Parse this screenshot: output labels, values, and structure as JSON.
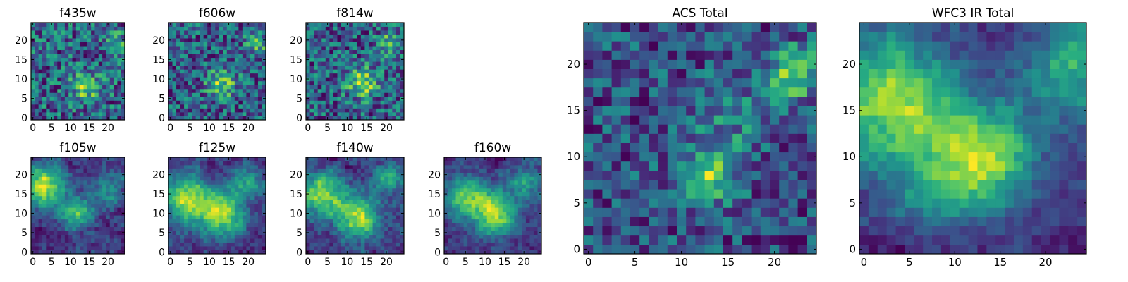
{
  "figure": {
    "background": "#ffffff",
    "colormap": "viridis"
  },
  "chart_data": [
    {
      "type": "heatmap",
      "title": "f435w",
      "grid_size": 25,
      "xlim": [
        -0.5,
        24.5
      ],
      "ylim": [
        -0.5,
        24.5
      ],
      "xticks": [
        "0",
        "5",
        "10",
        "15",
        "20"
      ],
      "yticks": [
        "0",
        "5",
        "10",
        "15",
        "20"
      ],
      "seed": 11,
      "noise": 0.9,
      "smooth": 0,
      "blobs": [
        [
          14,
          8,
          0.6,
          2.5
        ],
        [
          22,
          19,
          0.4,
          2.0
        ]
      ]
    },
    {
      "type": "heatmap",
      "title": "f606w",
      "grid_size": 25,
      "xlim": [
        -0.5,
        24.5
      ],
      "ylim": [
        -0.5,
        24.5
      ],
      "xticks": [
        "0",
        "5",
        "10",
        "15",
        "20"
      ],
      "yticks": [
        "0",
        "5",
        "10",
        "15",
        "20"
      ],
      "seed": 23,
      "noise": 0.9,
      "smooth": 0,
      "blobs": [
        [
          13,
          9,
          0.7,
          2.5
        ],
        [
          22,
          19,
          0.5,
          2.0
        ]
      ]
    },
    {
      "type": "heatmap",
      "title": "f814w",
      "grid_size": 25,
      "xlim": [
        -0.5,
        24.5
      ],
      "ylim": [
        -0.5,
        24.5
      ],
      "xticks": [
        "0",
        "5",
        "10",
        "15",
        "20"
      ],
      "yticks": [
        "0",
        "5",
        "10",
        "15",
        "20"
      ],
      "seed": 37,
      "noise": 0.9,
      "smooth": 0,
      "blobs": [
        [
          14,
          9,
          0.8,
          2.5
        ],
        [
          21,
          19,
          0.6,
          2.0
        ]
      ]
    },
    {
      "type": "heatmap",
      "title": "f105w",
      "grid_size": 25,
      "xlim": [
        -0.5,
        24.5
      ],
      "ylim": [
        -0.5,
        24.5
      ],
      "xticks": [
        "0",
        "5",
        "10",
        "15",
        "20"
      ],
      "yticks": [
        "0",
        "5",
        "10",
        "15",
        "20"
      ],
      "seed": 41,
      "noise": 0.5,
      "smooth": 1,
      "blobs": [
        [
          3,
          17,
          0.9,
          4.0
        ],
        [
          12,
          10,
          0.7,
          3.0
        ],
        [
          20,
          16,
          0.4,
          3.0
        ]
      ]
    },
    {
      "type": "heatmap",
      "title": "f125w",
      "grid_size": 25,
      "xlim": [
        -0.5,
        24.5
      ],
      "ylim": [
        -0.5,
        24.5
      ],
      "xticks": [
        "0",
        "5",
        "10",
        "15",
        "20"
      ],
      "yticks": [
        "0",
        "5",
        "10",
        "15",
        "20"
      ],
      "seed": 53,
      "noise": 0.5,
      "smooth": 1,
      "blobs": [
        [
          4,
          14,
          0.8,
          4.0
        ],
        [
          13,
          10,
          0.9,
          4.0
        ],
        [
          20,
          18,
          0.5,
          3.0
        ]
      ]
    },
    {
      "type": "heatmap",
      "title": "f140w",
      "grid_size": 25,
      "xlim": [
        -0.5,
        24.5
      ],
      "ylim": [
        -0.5,
        24.5
      ],
      "xticks": [
        "0",
        "5",
        "10",
        "15",
        "20"
      ],
      "yticks": [
        "0",
        "5",
        "10",
        "15",
        "20"
      ],
      "seed": 61,
      "noise": 0.5,
      "smooth": 1,
      "blobs": [
        [
          4,
          15,
          0.8,
          4.0
        ],
        [
          13,
          9,
          0.9,
          3.5
        ],
        [
          21,
          19,
          0.5,
          3.0
        ]
      ]
    },
    {
      "type": "heatmap",
      "title": "f160w",
      "grid_size": 25,
      "xlim": [
        -0.5,
        24.5
      ],
      "ylim": [
        -0.5,
        24.5
      ],
      "xticks": [
        "0",
        "5",
        "10",
        "15",
        "20"
      ],
      "yticks": [
        "0",
        "5",
        "10",
        "15",
        "20"
      ],
      "seed": 71,
      "noise": 0.5,
      "smooth": 1,
      "blobs": [
        [
          5,
          14,
          0.7,
          4.0
        ],
        [
          13,
          10,
          0.9,
          4.0
        ],
        [
          21,
          18,
          0.5,
          3.0
        ]
      ]
    },
    {
      "type": "heatmap",
      "title": "ACS Total",
      "grid_size": 25,
      "xlim": [
        -0.5,
        24.5
      ],
      "ylim": [
        -0.5,
        24.5
      ],
      "xticks": [
        "0",
        "5",
        "10",
        "15",
        "20"
      ],
      "yticks": [
        "0",
        "5",
        "10",
        "15",
        "20"
      ],
      "seed": 83,
      "noise": 0.8,
      "smooth": 0,
      "blobs": [
        [
          13,
          8,
          0.9,
          2.0
        ],
        [
          22,
          19,
          0.8,
          2.0
        ],
        [
          15,
          14,
          0.3,
          3.0
        ]
      ]
    },
    {
      "type": "heatmap",
      "title": "WFC3 IR Total",
      "grid_size": 25,
      "xlim": [
        -0.5,
        24.5
      ],
      "ylim": [
        -0.5,
        24.5
      ],
      "xticks": [
        "0",
        "5",
        "10",
        "15",
        "20"
      ],
      "yticks": [
        "0",
        "5",
        "10",
        "15",
        "20"
      ],
      "seed": 97,
      "noise": 0.35,
      "smooth": 1,
      "blobs": [
        [
          3,
          16,
          1.0,
          5.0
        ],
        [
          13,
          10,
          1.0,
          4.0
        ],
        [
          23,
          20,
          0.7,
          3.5
        ],
        [
          7,
          6,
          0.3,
          3.0
        ]
      ]
    }
  ]
}
